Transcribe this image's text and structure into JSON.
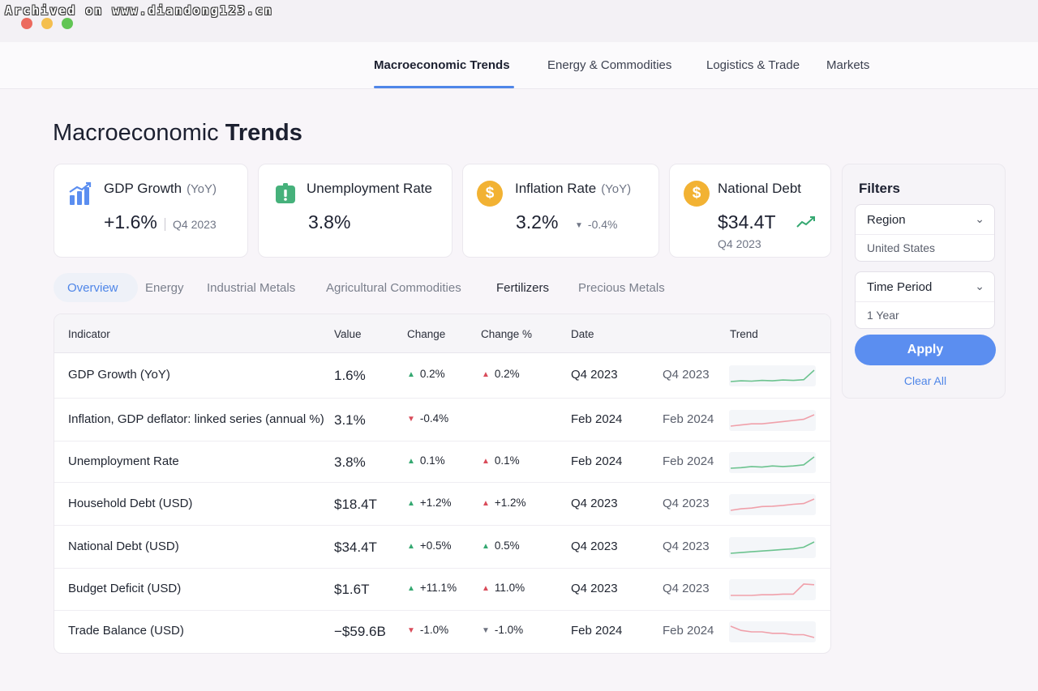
{
  "watermark": "Archived on www.diandong123.cn",
  "nav": {
    "items": [
      "Macroeconomic Trends",
      "Energy & Commodities",
      "Logistics & Trade",
      "Markets"
    ]
  },
  "page": {
    "title_light": "Macroeconomic",
    "title_bold": "Trends"
  },
  "kpis": {
    "gdp": {
      "label": "GDP Growth",
      "sub": "(YoY)",
      "value": "+1.6%",
      "period": "Q4 2023",
      "icon": "bar-chart-growth-icon"
    },
    "unemployment": {
      "label": "Unemployment Rate",
      "value": "3.8%",
      "icon": "id-badge-icon"
    },
    "inflation": {
      "label": "Inflation Rate",
      "sub": "(YoY)",
      "value": "3.2%",
      "change": "-0.4%",
      "icon": "dollar-coin-icon"
    },
    "debt": {
      "label": "National Debt",
      "value": "$34.4T",
      "period": "Q4 2023",
      "icon": "dollar-coin-icon"
    }
  },
  "tabs": [
    "Overview",
    "Energy",
    "Industrial Metals",
    "Agricultural Commodities",
    "Fertilizers",
    "Precious Metals"
  ],
  "table": {
    "headers": [
      "Indicator",
      "Value",
      "Change",
      "Change %",
      "Date",
      "Trend"
    ],
    "rows": [
      {
        "indicator": "GDP Growth (YoY)",
        "value": "1.6%",
        "change": "0.2%",
        "change_dir": "up",
        "change_pct": "0.2%",
        "pct_dir": "up-red",
        "date": "Q4 2023",
        "date2": "Q4 2023",
        "trend": [
          3,
          3.2,
          3.1,
          3.3,
          3.2,
          3.4,
          3.3,
          3.5,
          6
        ],
        "trend_color": "#6cc38f"
      },
      {
        "indicator": "Inflation, GDP deflator: linked series (annual %)",
        "value": "3.1%",
        "change": "-0.4%",
        "change_dir": "down",
        "change_pct": "",
        "pct_dir": "none",
        "date": "Feb 2024",
        "date2": "Feb 2024",
        "trend": [
          3,
          3.1,
          3.2,
          3.2,
          3.3,
          3.4,
          3.5,
          3.6,
          4
        ],
        "trend_color": "#f0a0aa"
      },
      {
        "indicator": "Unemployment Rate",
        "value": "3.8%",
        "change": "0.1%",
        "change_dir": "up",
        "change_pct": "0.1%",
        "pct_dir": "up-red",
        "date": "Feb 2024",
        "date2": "Feb 2024",
        "trend": [
          3,
          3.1,
          3.3,
          3.2,
          3.4,
          3.3,
          3.4,
          3.6,
          5
        ],
        "trend_color": "#6cc38f"
      },
      {
        "indicator": "Household Debt (USD)",
        "value": "$18.4T",
        "change": "+1.2%",
        "change_dir": "up",
        "change_pct": "+1.2%",
        "pct_dir": "up-red",
        "date": "Q4 2023",
        "date2": "Q4 2023",
        "trend": [
          3,
          3.4,
          3.6,
          4,
          4.1,
          4.3,
          4.6,
          4.8,
          6
        ],
        "trend_color": "#f0a0aa"
      },
      {
        "indicator": "National Debt (USD)",
        "value": "$34.4T",
        "change": "+0.5%",
        "change_dir": "up",
        "change_pct": "0.5%",
        "pct_dir": "up-green",
        "date": "Q4 2023",
        "date2": "Q4 2023",
        "trend": [
          3,
          3.2,
          3.4,
          3.6,
          3.8,
          4,
          4.2,
          4.6,
          6
        ],
        "trend_color": "#6cc38f"
      },
      {
        "indicator": "Budget Deficit (USD)",
        "value": "$1.6T",
        "change": "+11.1%",
        "change_dir": "up",
        "change_pct": "11.0%",
        "pct_dir": "up-red",
        "date": "Q4 2023",
        "date2": "Q4 2023",
        "trend": [
          3,
          3,
          3,
          3.1,
          3.1,
          3.2,
          3.2,
          4.8,
          4.7
        ],
        "trend_color": "#f0a0aa"
      },
      {
        "indicator": "Trade Balance (USD)",
        "value": "−$59.6B",
        "change": "-1.0%",
        "change_dir": "down",
        "change_pct": "-1.0%",
        "pct_dir": "down-gray",
        "date": "Feb 2024",
        "date2": "Feb 2024",
        "trend": [
          5,
          4.7,
          4.6,
          4.6,
          4.5,
          4.5,
          4.4,
          4.4,
          4.2
        ],
        "trend_color": "#f0a0aa"
      }
    ]
  },
  "filters": {
    "title": "Filters",
    "region": {
      "label": "Region",
      "value": "United States"
    },
    "period": {
      "label": "Time Period",
      "value": "1 Year"
    },
    "apply": "Apply",
    "clear": "Clear All"
  },
  "colors": {
    "accent": "#4f86e8",
    "positive": "#35a871",
    "negative": "#d94c5a",
    "coin": "#f2b233"
  }
}
